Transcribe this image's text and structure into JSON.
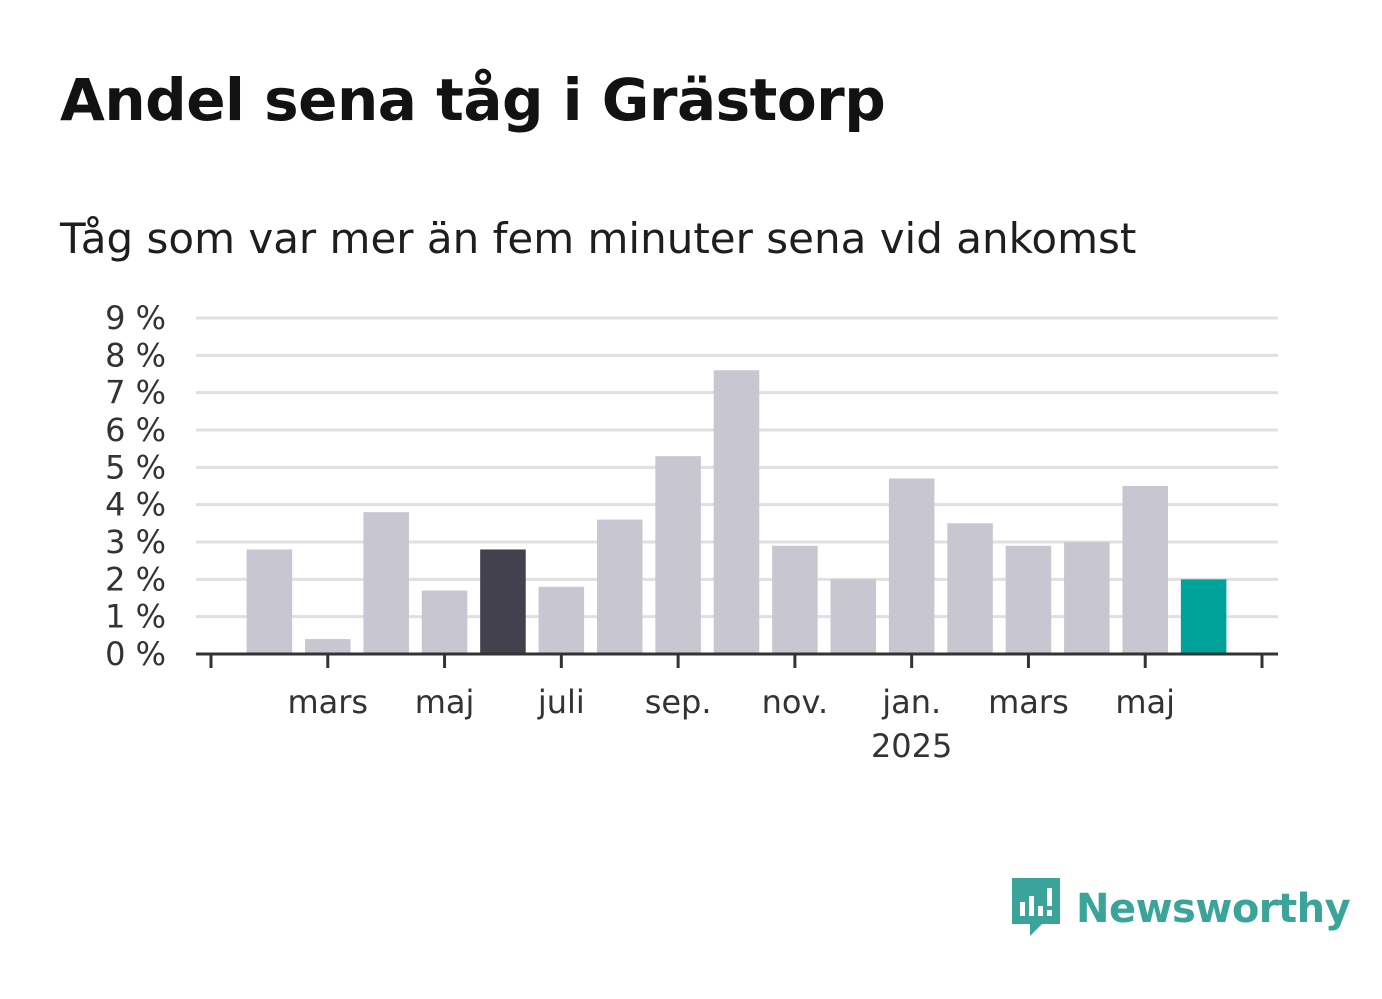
{
  "header": {
    "title": "Andel sena tåg i Grästorp",
    "subtitle": "Tåg som var mer än fem minuter sena vid ankomst"
  },
  "brand": {
    "name": "Newsworthy",
    "icon": "newsworthy-chart-bubble-icon",
    "color": "#3aa39a"
  },
  "chart_data": {
    "type": "bar",
    "categories": [
      "2024-02",
      "2024-03",
      "2024-04",
      "2024-05",
      "2024-06",
      "2024-07",
      "2024-08",
      "2024-09",
      "2024-10",
      "2024-11",
      "2024-12",
      "2025-01",
      "2025-02",
      "2025-03",
      "2025-04",
      "2025-05",
      "2025-06"
    ],
    "values": [
      2.8,
      0.4,
      3.8,
      1.7,
      2.8,
      1.8,
      3.6,
      5.3,
      7.6,
      2.9,
      2.0,
      4.7,
      3.5,
      2.9,
      3.0,
      4.5,
      2.0
    ],
    "x_tick_labels": [
      {
        "category": "2024-03",
        "label": "mars",
        "sublabel": ""
      },
      {
        "category": "2024-05",
        "label": "maj",
        "sublabel": ""
      },
      {
        "category": "2024-07",
        "label": "juli",
        "sublabel": ""
      },
      {
        "category": "2024-09",
        "label": "sep.",
        "sublabel": ""
      },
      {
        "category": "2024-11",
        "label": "nov.",
        "sublabel": ""
      },
      {
        "category": "2025-01",
        "label": "jan.",
        "sublabel": "2025"
      },
      {
        "category": "2025-03",
        "label": "mars",
        "sublabel": ""
      },
      {
        "category": "2025-05",
        "label": "maj",
        "sublabel": ""
      }
    ],
    "y_ticks": [
      0,
      1,
      2,
      3,
      4,
      5,
      6,
      7,
      8,
      9
    ],
    "y_tick_labels": [
      "0 %",
      "1 %",
      "2 %",
      "3 %",
      "4 %",
      "5 %",
      "6 %",
      "7 %",
      "8 %",
      "9 %"
    ],
    "ylim": [
      0,
      9
    ],
    "grid": true,
    "colors": {
      "default": "#c8c7d1",
      "highlight_2024-06": "#42414d",
      "latest_2025-06": "#00a39a",
      "grid": "#e0e0e0",
      "axis": "#333333"
    },
    "highlight_category": "2024-06",
    "latest_category": "2025-06"
  }
}
